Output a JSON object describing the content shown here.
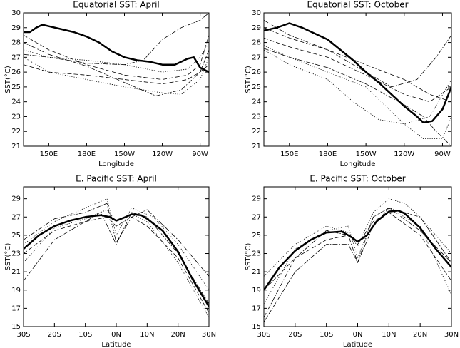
{
  "chart_data": [
    {
      "type": "line",
      "title": "Equatorial SST: April",
      "xlabel": "Longitude",
      "ylabel": "SST(°C)",
      "xlim": [
        130,
        277
      ],
      "xticks": [
        {
          "value": 150,
          "label": "150E"
        },
        {
          "value": 180,
          "label": "180E"
        },
        {
          "value": 210,
          "label": "150W"
        },
        {
          "value": 240,
          "label": "120W"
        },
        {
          "value": 270,
          "label": "90W"
        }
      ],
      "ylim": [
        21,
        30
      ],
      "yticks": [
        21,
        22,
        23,
        24,
        25,
        26,
        27,
        28,
        29,
        30
      ],
      "series": [
        {
          "color": "#000",
          "style": "solid",
          "linewidth": 2.5,
          "x": [
            130,
            135,
            140,
            145,
            150,
            160,
            170,
            180,
            190,
            200,
            210,
            220,
            230,
            240,
            250,
            260,
            265,
            270,
            277
          ],
          "values": [
            28.7,
            28.7,
            29.0,
            29.2,
            29.1,
            28.9,
            28.7,
            28.4,
            28.0,
            27.4,
            27.0,
            26.8,
            26.7,
            26.5,
            26.5,
            26.9,
            27.0,
            26.3,
            26.0
          ]
        },
        {
          "color": "#000",
          "style": "dashdot",
          "linewidth": 0.8,
          "x": [
            130,
            150,
            180,
            210,
            225,
            240,
            255,
            270,
            277
          ],
          "values": [
            27.2,
            27.0,
            26.6,
            26.5,
            26.8,
            28.2,
            29.0,
            29.5,
            30.0
          ]
        },
        {
          "color": "#000",
          "style": "dashed",
          "linewidth": 0.8,
          "x": [
            130,
            150,
            180,
            210,
            240,
            260,
            270,
            277
          ],
          "values": [
            28.5,
            27.5,
            26.5,
            25.8,
            25.5,
            25.8,
            26.5,
            28.5
          ]
        },
        {
          "color": "#000",
          "style": "dotted",
          "linewidth": 0.8,
          "x": [
            130,
            150,
            180,
            210,
            240,
            255,
            270,
            277
          ],
          "values": [
            27.0,
            26.0,
            25.5,
            25.0,
            24.6,
            24.5,
            25.5,
            27.0
          ]
        },
        {
          "color": "#000",
          "style": "dashed",
          "linewidth": 0.8,
          "x": [
            130,
            150,
            180,
            210,
            240,
            260,
            270,
            277
          ],
          "values": [
            26.5,
            26.0,
            25.8,
            25.5,
            25.2,
            25.5,
            26.0,
            26.5
          ]
        },
        {
          "color": "#000",
          "style": "dashdot",
          "linewidth": 0.8,
          "x": [
            130,
            150,
            180,
            210,
            235,
            255,
            270,
            277
          ],
          "values": [
            28.0,
            27.2,
            26.4,
            25.3,
            24.4,
            24.8,
            26.0,
            27.5
          ]
        },
        {
          "color": "#000",
          "style": "dotted",
          "linewidth": 0.8,
          "x": [
            130,
            150,
            180,
            210,
            240,
            260,
            270,
            277
          ],
          "values": [
            27.5,
            27.0,
            26.8,
            26.5,
            26.0,
            26.2,
            27.0,
            28.0
          ]
        }
      ]
    },
    {
      "type": "line",
      "title": "Equatorial SST: October",
      "xlabel": "Longitude",
      "ylabel": "SST(°C)",
      "xlim": [
        130,
        277
      ],
      "xticks": [
        {
          "value": 150,
          "label": "150E"
        },
        {
          "value": 180,
          "label": "180E"
        },
        {
          "value": 210,
          "label": "150W"
        },
        {
          "value": 240,
          "label": "120W"
        },
        {
          "value": 270,
          "label": "90W"
        }
      ],
      "ylim": [
        21,
        30
      ],
      "yticks": [
        21,
        22,
        23,
        24,
        25,
        26,
        27,
        28,
        29,
        30
      ],
      "series": [
        {
          "color": "#000",
          "style": "solid",
          "linewidth": 2.5,
          "x": [
            130,
            140,
            150,
            160,
            170,
            180,
            190,
            200,
            210,
            220,
            230,
            240,
            250,
            255,
            262,
            270,
            277
          ],
          "values": [
            28.8,
            29.0,
            29.3,
            29.0,
            28.6,
            28.2,
            27.5,
            26.8,
            26.0,
            25.3,
            24.5,
            23.7,
            23.0,
            22.6,
            22.7,
            23.5,
            25.0
          ]
        },
        {
          "color": "#000",
          "style": "dotted",
          "linewidth": 0.8,
          "x": [
            130,
            150,
            180,
            210,
            240,
            255,
            270,
            277
          ],
          "values": [
            27.8,
            27.0,
            26.0,
            25.0,
            22.5,
            21.5,
            21.5,
            23.0
          ]
        },
        {
          "color": "#000",
          "style": "dashdot",
          "linewidth": 0.8,
          "x": [
            130,
            150,
            180,
            210,
            230,
            250,
            265,
            277
          ],
          "values": [
            29.5,
            28.5,
            27.5,
            26.0,
            25.0,
            25.5,
            27.0,
            28.5
          ]
        },
        {
          "color": "#000",
          "style": "dotted",
          "linewidth": 0.8,
          "x": [
            130,
            150,
            180,
            200,
            220,
            240,
            260,
            277
          ],
          "values": [
            27.5,
            26.5,
            25.5,
            24.0,
            22.8,
            22.5,
            23.0,
            25.5
          ]
        },
        {
          "color": "#000",
          "style": "dashed",
          "linewidth": 0.8,
          "x": [
            130,
            150,
            180,
            210,
            240,
            260,
            277
          ],
          "values": [
            28.3,
            27.7,
            27.0,
            25.8,
            24.5,
            24.0,
            25.0
          ]
        },
        {
          "color": "#000",
          "style": "dashed",
          "linewidth": 0.8,
          "x": [
            130,
            150,
            180,
            210,
            240,
            260,
            277
          ],
          "values": [
            29.0,
            28.3,
            27.5,
            26.5,
            25.5,
            24.5,
            24.0
          ]
        },
        {
          "color": "#000",
          "style": "dashdot",
          "linewidth": 0.8,
          "x": [
            130,
            150,
            180,
            210,
            240,
            255,
            265,
            277
          ],
          "values": [
            27.6,
            27.0,
            26.3,
            25.2,
            23.8,
            23.0,
            22.0,
            21.0
          ]
        }
      ]
    },
    {
      "type": "line",
      "title": "E. Pacific SST: April",
      "xlabel": "Latitude",
      "ylabel": "SST(°C)",
      "xlim": [
        -30,
        30
      ],
      "xticks": [
        {
          "value": -30,
          "label": "30S"
        },
        {
          "value": -20,
          "label": "20S"
        },
        {
          "value": -10,
          "label": "10S"
        },
        {
          "value": 0,
          "label": "0N"
        },
        {
          "value": 10,
          "label": "10N"
        },
        {
          "value": 20,
          "label": "20N"
        },
        {
          "value": 30,
          "label": "30N"
        }
      ],
      "ylim": [
        15,
        30.3
      ],
      "yticks": [
        15,
        17,
        19,
        21,
        23,
        25,
        27,
        29
      ],
      "series": [
        {
          "color": "#000",
          "style": "solid",
          "linewidth": 2.5,
          "x": [
            -30,
            -25,
            -20,
            -15,
            -10,
            -5,
            -2,
            0,
            3,
            5,
            8,
            10,
            15,
            20,
            25,
            30
          ],
          "values": [
            23.5,
            25.0,
            26.0,
            26.6,
            27.0,
            27.2,
            27.0,
            26.6,
            27.0,
            27.3,
            27.2,
            26.8,
            25.5,
            23.2,
            20.0,
            17.2
          ]
        },
        {
          "color": "#000",
          "style": "dashdot",
          "linewidth": 0.8,
          "x": [
            -30,
            -20,
            -10,
            -5,
            0,
            5,
            10,
            20,
            30
          ],
          "values": [
            20.0,
            24.5,
            26.5,
            27.5,
            24.0,
            27.5,
            27.0,
            23.0,
            17.5
          ]
        },
        {
          "color": "#000",
          "style": "dotted",
          "linewidth": 0.8,
          "x": [
            -30,
            -20,
            -10,
            -3,
            0,
            5,
            12,
            20,
            30
          ],
          "values": [
            24.0,
            26.5,
            28.0,
            29.0,
            25.0,
            28.0,
            27.0,
            24.0,
            19.0
          ]
        },
        {
          "color": "#000",
          "style": "dashed",
          "linewidth": 0.8,
          "x": [
            -30,
            -20,
            -10,
            -3,
            0,
            5,
            10,
            20,
            30
          ],
          "values": [
            23.0,
            25.5,
            26.5,
            27.0,
            26.0,
            27.0,
            26.0,
            22.5,
            16.5
          ]
        },
        {
          "color": "#000",
          "style": "dashdot",
          "linewidth": 0.8,
          "x": [
            -30,
            -20,
            -10,
            -3,
            0,
            5,
            10,
            20,
            30
          ],
          "values": [
            24.5,
            26.8,
            27.5,
            28.5,
            24.2,
            27.0,
            27.8,
            24.5,
            20.5
          ]
        },
        {
          "color": "#000",
          "style": "dotted",
          "linewidth": 0.8,
          "x": [
            -30,
            -20,
            -10,
            -3,
            0,
            5,
            10,
            20,
            30
          ],
          "values": [
            22.0,
            25.8,
            26.8,
            27.8,
            26.5,
            27.3,
            26.5,
            22.0,
            16.0
          ]
        }
      ]
    },
    {
      "type": "line",
      "title": "E. Pacific SST: October",
      "xlabel": "Latitude",
      "ylabel": "SST(°C)",
      "xlim": [
        -30,
        30
      ],
      "xticks": [
        {
          "value": -30,
          "label": "30S"
        },
        {
          "value": -20,
          "label": "20S"
        },
        {
          "value": -10,
          "label": "10S"
        },
        {
          "value": 0,
          "label": "0N"
        },
        {
          "value": 10,
          "label": "10N"
        },
        {
          "value": 20,
          "label": "20N"
        },
        {
          "value": 30,
          "label": "30N"
        }
      ],
      "ylim": [
        15,
        30.3
      ],
      "yticks": [
        15,
        17,
        19,
        21,
        23,
        25,
        27,
        29
      ],
      "series": [
        {
          "color": "#000",
          "style": "solid",
          "linewidth": 2.5,
          "x": [
            -30,
            -25,
            -20,
            -15,
            -10,
            -5,
            -2,
            0,
            3,
            6,
            10,
            13,
            15,
            20,
            25,
            30
          ],
          "values": [
            19.0,
            21.5,
            23.3,
            24.5,
            25.3,
            25.4,
            24.8,
            24.3,
            25.0,
            26.5,
            27.6,
            27.7,
            27.4,
            25.8,
            23.5,
            21.5
          ]
        },
        {
          "color": "#000",
          "style": "dashdot",
          "linewidth": 0.8,
          "x": [
            -30,
            -20,
            -10,
            -3,
            0,
            5,
            10,
            20,
            30
          ],
          "values": [
            15.5,
            21.0,
            24.0,
            24.0,
            22.0,
            26.0,
            28.0,
            27.0,
            22.0
          ]
        },
        {
          "color": "#000",
          "style": "dotted",
          "linewidth": 0.8,
          "x": [
            -30,
            -20,
            -10,
            -3,
            0,
            5,
            10,
            15,
            20,
            30
          ],
          "values": [
            17.5,
            23.5,
            25.5,
            26.0,
            22.5,
            27.0,
            28.0,
            27.0,
            26.0,
            18.5
          ]
        },
        {
          "color": "#000",
          "style": "dotted",
          "linewidth": 0.8,
          "x": [
            -30,
            -20,
            -10,
            -3,
            0,
            5,
            10,
            15,
            20,
            30
          ],
          "values": [
            20.5,
            24.0,
            26.0,
            25.3,
            23.8,
            27.5,
            29.0,
            28.5,
            27.0,
            23.0
          ]
        },
        {
          "color": "#000",
          "style": "dashed",
          "linewidth": 0.8,
          "x": [
            -30,
            -20,
            -10,
            -3,
            0,
            5,
            10,
            20,
            30
          ],
          "values": [
            19.0,
            22.5,
            24.5,
            25.0,
            24.0,
            26.5,
            27.5,
            25.0,
            20.0
          ]
        },
        {
          "color": "#000",
          "style": "dashdot",
          "linewidth": 0.8,
          "x": [
            -30,
            -20,
            -10,
            -3,
            0,
            5,
            10,
            20,
            30
          ],
          "values": [
            16.0,
            22.5,
            25.5,
            25.0,
            22.0,
            27.0,
            28.0,
            25.5,
            22.0
          ]
        }
      ]
    }
  ]
}
